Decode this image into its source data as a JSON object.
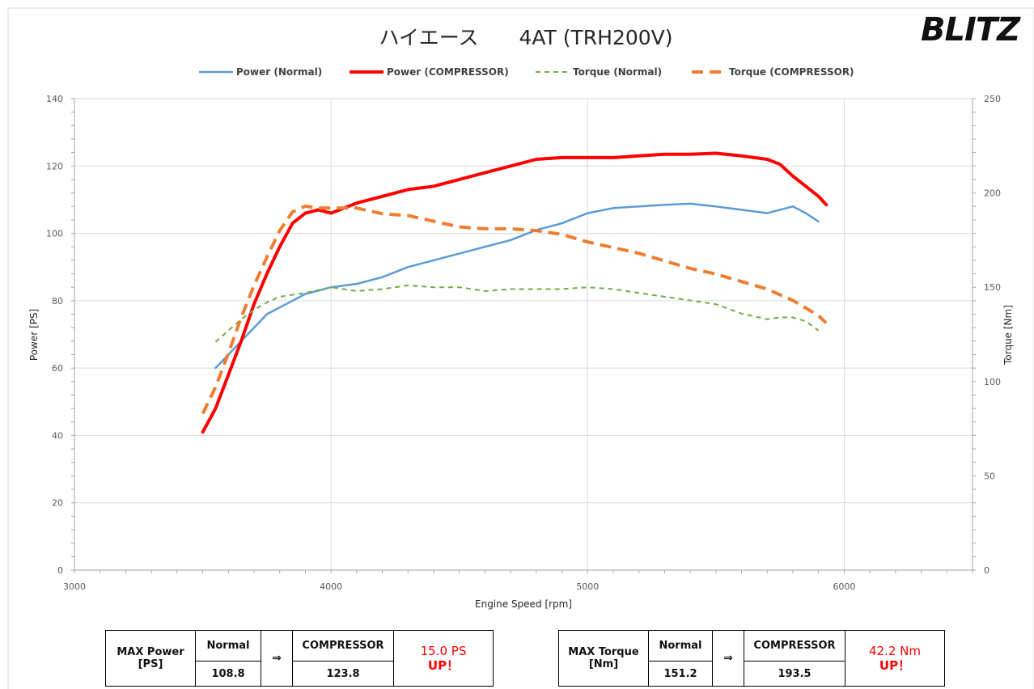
{
  "logo": "BLITZ",
  "chart_data": {
    "type": "line",
    "title": "ハイエース　　4AT (TRH200V)",
    "xlabel": "Engine Speed [rpm]",
    "ylabel": "Power [PS]",
    "y2label": "Torque [Nm]",
    "xlim": [
      3000,
      6500
    ],
    "ylim": [
      0,
      140
    ],
    "y2lim": [
      0,
      250
    ],
    "x_ticks": [
      3000,
      4000,
      5000,
      6000
    ],
    "y_ticks": [
      0,
      20,
      40,
      60,
      80,
      100,
      120,
      140
    ],
    "y2_ticks": [
      0,
      50,
      100,
      150,
      200,
      250
    ],
    "grid": true,
    "legend_position": "top",
    "series": [
      {
        "name": "Power (Normal)",
        "axis": "left",
        "color": "#5b9bd5",
        "style": "solid",
        "x": [
          3550,
          3600,
          3650,
          3700,
          3750,
          3800,
          3850,
          3900,
          3950,
          4000,
          4100,
          4200,
          4300,
          4400,
          4500,
          4600,
          4700,
          4800,
          4900,
          5000,
          5100,
          5200,
          5300,
          5400,
          5500,
          5600,
          5700,
          5750,
          5800,
          5850,
          5900
        ],
        "y": [
          60,
          64,
          68,
          72,
          76,
          78,
          80,
          82,
          83,
          84,
          85,
          87,
          90,
          92,
          94,
          96,
          98,
          101,
          103,
          106,
          107.5,
          108,
          108.5,
          108.8,
          108,
          107,
          106,
          107,
          108,
          106,
          103.5
        ]
      },
      {
        "name": "Power (COMPRESSOR)",
        "axis": "left",
        "color": "#ff0000",
        "style": "solid",
        "x": [
          3500,
          3550,
          3600,
          3650,
          3700,
          3750,
          3800,
          3850,
          3900,
          3950,
          4000,
          4100,
          4200,
          4300,
          4400,
          4500,
          4600,
          4700,
          4800,
          4900,
          5000,
          5100,
          5200,
          5300,
          5400,
          5500,
          5600,
          5700,
          5750,
          5800,
          5850,
          5900,
          5930
        ],
        "y": [
          41,
          48,
          58,
          68,
          79,
          88,
          96,
          103,
          106,
          107,
          106,
          109,
          111,
          113,
          114,
          116,
          118,
          120,
          122,
          122.5,
          122.5,
          122.5,
          123,
          123.5,
          123.5,
          123.8,
          123,
          122,
          120.5,
          117,
          114,
          111,
          108.5
        ]
      },
      {
        "name": "Torque (Normal)",
        "axis": "right",
        "color": "#70ad47",
        "style": "dashed",
        "x": [
          3550,
          3600,
          3650,
          3700,
          3750,
          3800,
          3850,
          3900,
          4000,
          4100,
          4200,
          4300,
          4400,
          4500,
          4600,
          4700,
          4800,
          4900,
          5000,
          5100,
          5200,
          5300,
          5400,
          5500,
          5600,
          5700,
          5750,
          5800,
          5850,
          5900
        ],
        "y": [
          121,
          127,
          133,
          138,
          142,
          145,
          146,
          147,
          150,
          148,
          149,
          151,
          150,
          150,
          148,
          149,
          149,
          149,
          150,
          149,
          147,
          145,
          143,
          141,
          136,
          133,
          134,
          134,
          132,
          127
        ]
      },
      {
        "name": "Torque (COMPRESSOR)",
        "axis": "right",
        "color": "#ed7d31",
        "style": "dashed",
        "x": [
          3500,
          3550,
          3600,
          3650,
          3700,
          3750,
          3800,
          3850,
          3900,
          3950,
          4000,
          4100,
          4200,
          4300,
          4400,
          4500,
          4600,
          4700,
          4800,
          4900,
          5000,
          5100,
          5200,
          5300,
          5400,
          5500,
          5600,
          5700,
          5750,
          5800,
          5850,
          5900,
          5930
        ],
        "y": [
          83,
          97,
          115,
          134,
          151,
          166,
          180,
          190,
          193,
          192,
          192,
          192,
          189,
          188,
          185,
          182,
          181,
          181,
          180,
          178,
          174,
          171,
          168,
          164,
          160,
          157,
          153,
          149,
          146,
          143,
          139,
          135,
          131
        ]
      }
    ]
  },
  "tables": [
    {
      "label": "MAX Power\n[PS]",
      "normal_header": "Normal",
      "normal_value": "108.8",
      "arrow": "⇒",
      "compressor_header": "COMPRESSOR",
      "compressor_value": "123.8",
      "gain": "15.0 PS",
      "gain_suffix": "UP！"
    },
    {
      "label": "MAX Torque\n[Nm]",
      "normal_header": "Normal",
      "normal_value": "151.2",
      "arrow": "⇒",
      "compressor_header": "COMPRESSOR",
      "compressor_value": "193.5",
      "gain": "42.2 Nm",
      "gain_suffix": "UP！"
    }
  ]
}
